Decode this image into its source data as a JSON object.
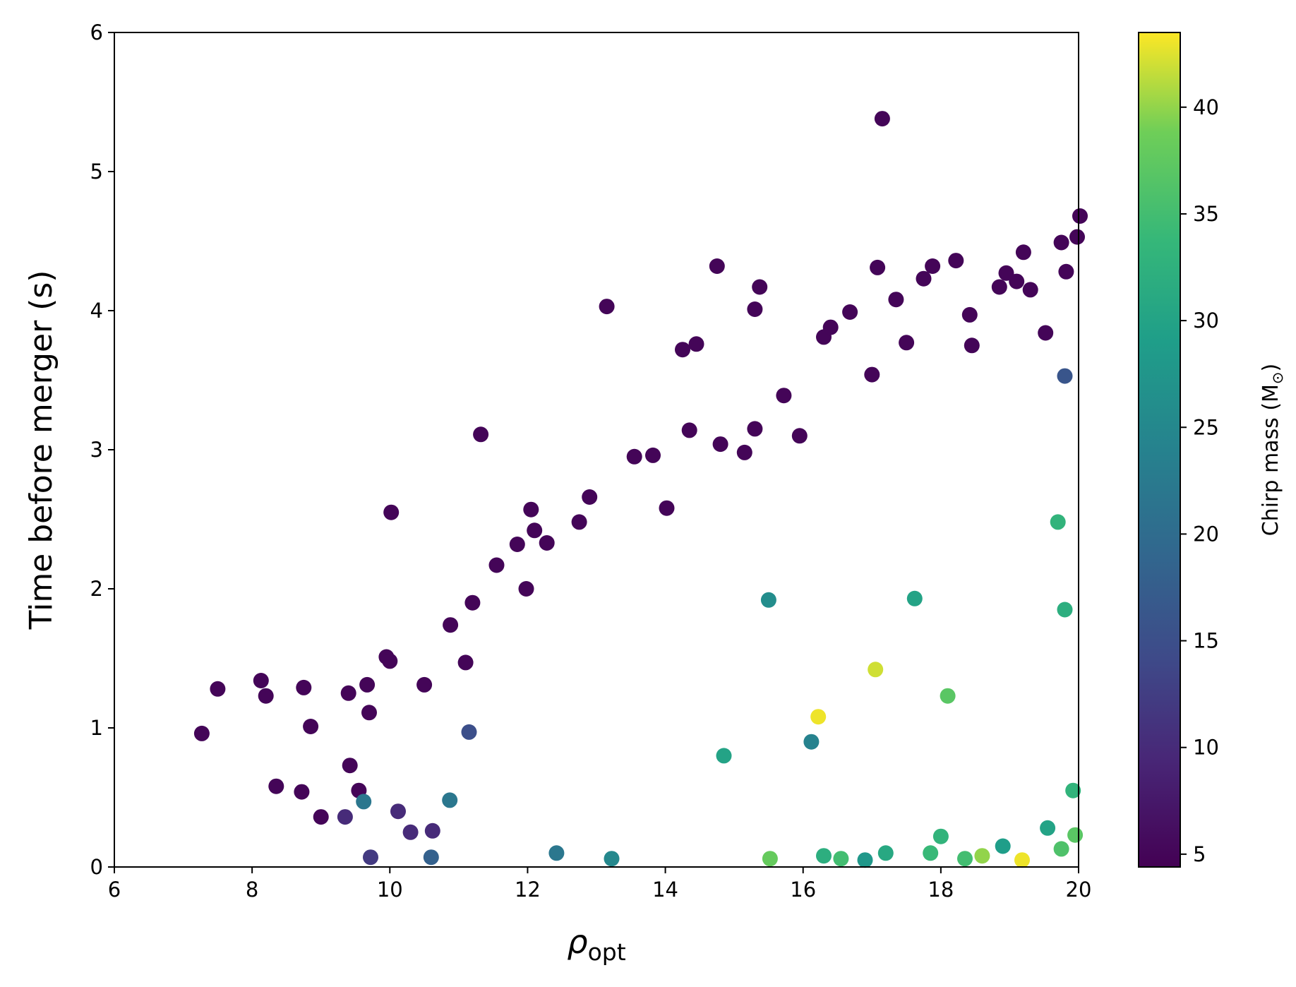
{
  "chart_data": {
    "type": "scatter",
    "title": "",
    "xlabel": {
      "main": "ρ",
      "sub": "opt"
    },
    "ylabel": "Time before merger (s)",
    "xlim": [
      6,
      20
    ],
    "ylim": [
      0,
      6
    ],
    "xticks": [
      6,
      8,
      10,
      12,
      14,
      16,
      18,
      20
    ],
    "yticks": [
      0,
      1,
      2,
      3,
      4,
      5,
      6
    ],
    "grid": false,
    "legend": "none",
    "colorbar": {
      "label": "Chirp mass (M",
      "label_sub": "⊙",
      "label_close": ")",
      "range": [
        4.4,
        43.5
      ],
      "ticks": [
        5,
        10,
        15,
        20,
        25,
        30,
        35,
        40
      ],
      "colormap": "viridis"
    },
    "series": [
      {
        "color_by": "chirp_mass",
        "points_note": "Outer/isolated points read from the figure; dense core estimated from point density.",
        "points": [
          [
            7.27,
            0.96,
            5
          ],
          [
            7.5,
            1.28,
            5
          ],
          [
            8.13,
            1.34,
            5
          ],
          [
            8.2,
            1.23,
            5
          ],
          [
            8.35,
            0.58,
            5
          ],
          [
            8.72,
            0.54,
            5
          ],
          [
            8.75,
            1.29,
            5
          ],
          [
            8.85,
            1.01,
            5
          ],
          [
            9.0,
            0.36,
            5
          ],
          [
            9.35,
            0.36,
            10
          ],
          [
            9.4,
            1.25,
            5
          ],
          [
            9.42,
            0.73,
            5
          ],
          [
            9.55,
            0.55,
            5
          ],
          [
            9.62,
            0.47,
            22
          ],
          [
            9.67,
            1.31,
            5
          ],
          [
            9.7,
            1.11,
            5
          ],
          [
            9.72,
            0.07,
            12
          ],
          [
            9.95,
            1.51,
            5
          ],
          [
            10.0,
            1.48,
            5
          ],
          [
            10.02,
            2.55,
            5
          ],
          [
            10.12,
            0.4,
            10
          ],
          [
            10.3,
            0.25,
            10
          ],
          [
            10.5,
            1.31,
            5
          ],
          [
            10.6,
            0.07,
            18
          ],
          [
            10.62,
            0.26,
            10
          ],
          [
            10.87,
            0.48,
            22
          ],
          [
            10.88,
            1.74,
            5
          ],
          [
            11.1,
            1.47,
            5
          ],
          [
            11.15,
            0.97,
            15
          ],
          [
            11.2,
            1.9,
            5
          ],
          [
            11.32,
            3.11,
            5
          ],
          [
            11.55,
            2.17,
            5
          ],
          [
            11.85,
            2.32,
            5
          ],
          [
            11.98,
            2.0,
            5
          ],
          [
            12.05,
            2.57,
            5
          ],
          [
            12.1,
            2.42,
            5
          ],
          [
            12.28,
            2.33,
            5
          ],
          [
            12.42,
            0.1,
            22
          ],
          [
            12.75,
            2.48,
            5
          ],
          [
            12.9,
            2.66,
            5
          ],
          [
            13.15,
            4.03,
            5
          ],
          [
            13.22,
            0.06,
            25
          ],
          [
            13.55,
            2.95,
            5
          ],
          [
            13.82,
            2.96,
            5
          ],
          [
            14.02,
            2.58,
            5
          ],
          [
            14.25,
            3.72,
            5
          ],
          [
            14.35,
            3.14,
            5
          ],
          [
            14.45,
            3.76,
            5
          ],
          [
            14.75,
            4.32,
            5
          ],
          [
            14.8,
            3.04,
            5
          ],
          [
            15.15,
            2.98,
            5
          ],
          [
            15.3,
            3.15,
            5
          ],
          [
            15.3,
            4.01,
            5
          ],
          [
            15.37,
            4.17,
            5
          ],
          [
            15.52,
            0.06,
            38
          ],
          [
            15.72,
            3.39,
            5
          ],
          [
            15.95,
            3.1,
            5
          ],
          [
            16.3,
            3.81,
            5
          ],
          [
            16.4,
            3.88,
            5
          ],
          [
            16.68,
            3.99,
            5
          ],
          [
            17.0,
            3.54,
            5
          ],
          [
            17.08,
            4.31,
            5
          ],
          [
            17.15,
            5.38,
            5
          ],
          [
            17.35,
            4.08,
            5
          ],
          [
            17.5,
            3.77,
            5
          ],
          [
            17.75,
            4.23,
            5
          ],
          [
            17.88,
            4.32,
            5
          ],
          [
            18.22,
            4.36,
            5
          ],
          [
            18.42,
            3.97,
            5
          ],
          [
            18.45,
            3.75,
            5
          ],
          [
            18.85,
            4.17,
            5
          ],
          [
            18.95,
            4.27,
            5
          ],
          [
            19.1,
            4.21,
            5
          ],
          [
            19.2,
            4.42,
            5
          ],
          [
            19.3,
            4.15,
            5
          ],
          [
            19.52,
            3.84,
            5
          ],
          [
            19.75,
            4.49,
            5
          ],
          [
            19.82,
            4.28,
            5
          ],
          [
            19.8,
            3.53,
            16
          ],
          [
            19.98,
            4.53,
            5
          ],
          [
            20.02,
            4.68,
            5
          ],
          [
            19.18,
            0.05,
            43
          ],
          [
            17.05,
            1.42,
            42
          ],
          [
            16.22,
            1.08,
            43
          ],
          [
            18.1,
            1.23,
            37
          ],
          [
            14.85,
            0.8,
            30
          ],
          [
            15.5,
            1.92,
            26
          ],
          [
            16.12,
            0.9,
            24
          ],
          [
            17.62,
            1.93,
            30
          ],
          [
            19.7,
            2.48,
            33
          ],
          [
            19.8,
            1.85,
            32
          ],
          [
            19.92,
            0.55,
            33
          ],
          [
            19.95,
            0.23,
            37
          ],
          [
            19.75,
            0.13,
            36
          ],
          [
            18.35,
            0.06,
            35
          ],
          [
            18.6,
            0.08,
            40
          ],
          [
            16.55,
            0.06,
            35
          ],
          [
            16.3,
            0.08,
            32
          ],
          [
            17.85,
            0.1,
            34
          ],
          [
            18.0,
            0.22,
            33
          ],
          [
            19.55,
            0.28,
            30
          ],
          [
            18.9,
            0.15,
            29
          ],
          [
            17.2,
            0.1,
            31
          ],
          [
            16.9,
            0.05,
            28
          ]
        ]
      }
    ]
  }
}
